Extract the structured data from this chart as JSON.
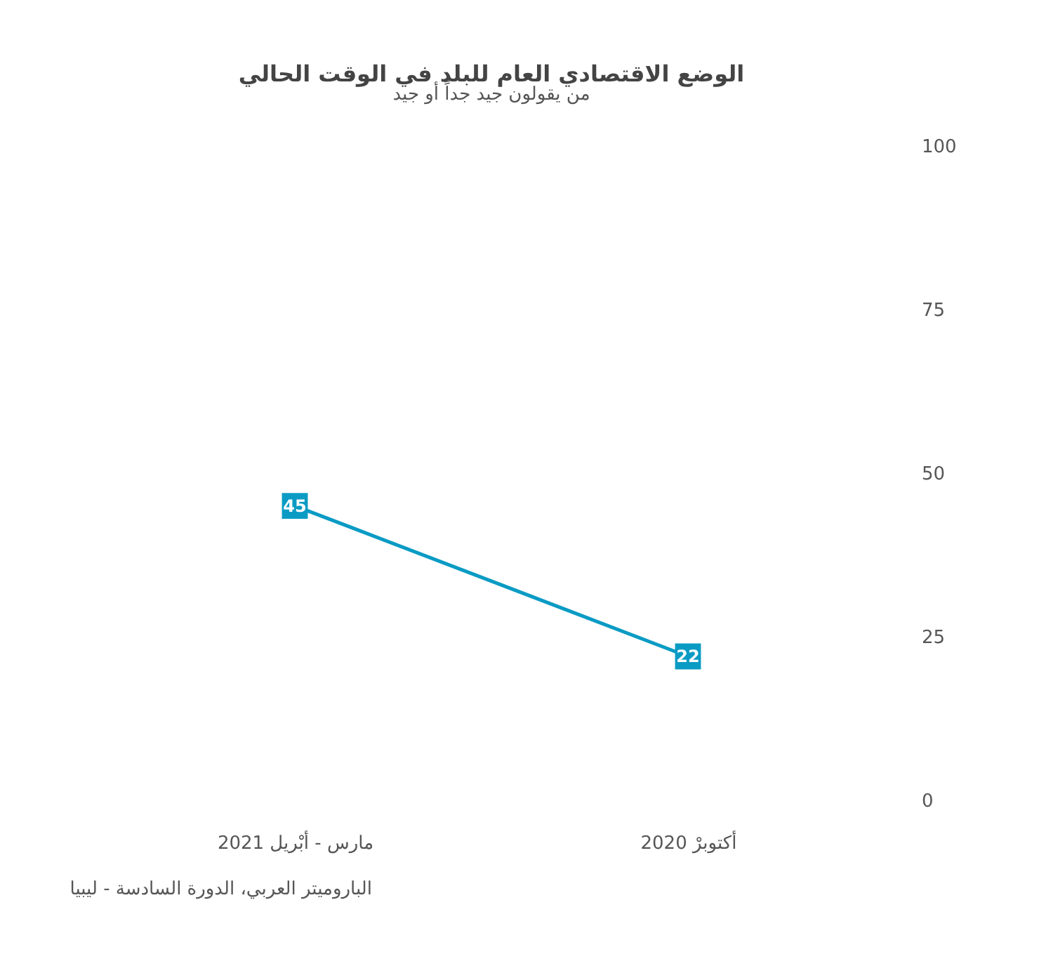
{
  "chart_data": {
    "type": "line",
    "title": "الوضع الاقتصادي العام للبلد في الوقت الحالي",
    "subtitle": "من يقولون جيد جداً أو جيد",
    "categories": [
      "مارس - أبْريل 2021",
      "أكتوبرْ 2020"
    ],
    "series": [
      {
        "color": "#0a9bc4",
        "values": [
          45,
          22
        ]
      }
    ],
    "ylim": [
      0,
      100
    ],
    "yticks": [
      0,
      25,
      50,
      75,
      100
    ],
    "grid": false,
    "legend": false,
    "marker": "square",
    "data_labels": true,
    "line_style": "solid",
    "annotations": [
      "الباروميتر العربي، الدورة السادسة - ليبيا"
    ]
  }
}
